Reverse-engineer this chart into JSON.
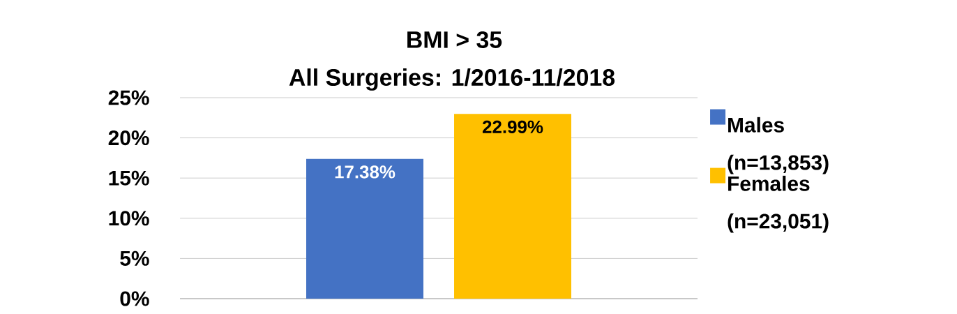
{
  "chart_data": {
    "type": "bar",
    "title": "BMI > 35",
    "subtitle": "All Surgeries:  1/2016-11/2018",
    "categories": [
      null
    ],
    "series": [
      {
        "name": "Males (n=13,853)",
        "color": "#4472c4",
        "values": [
          17.38
        ],
        "value_labels": [
          "17.38%"
        ]
      },
      {
        "name": "Females (n=23,051)",
        "color": "#ffc000",
        "values": [
          22.99
        ],
        "value_labels": [
          "22.99%"
        ]
      }
    ],
    "ylim": [
      0,
      25
    ],
    "yticks": [
      {
        "value": 0,
        "label": "0%"
      },
      {
        "value": 5,
        "label": "5%"
      },
      {
        "value": 10,
        "label": "10%"
      },
      {
        "value": 15,
        "label": "15%"
      },
      {
        "value": 20,
        "label": "20%"
      },
      {
        "value": 25,
        "label": "25%"
      }
    ],
    "grid": "y",
    "legend": "right"
  }
}
